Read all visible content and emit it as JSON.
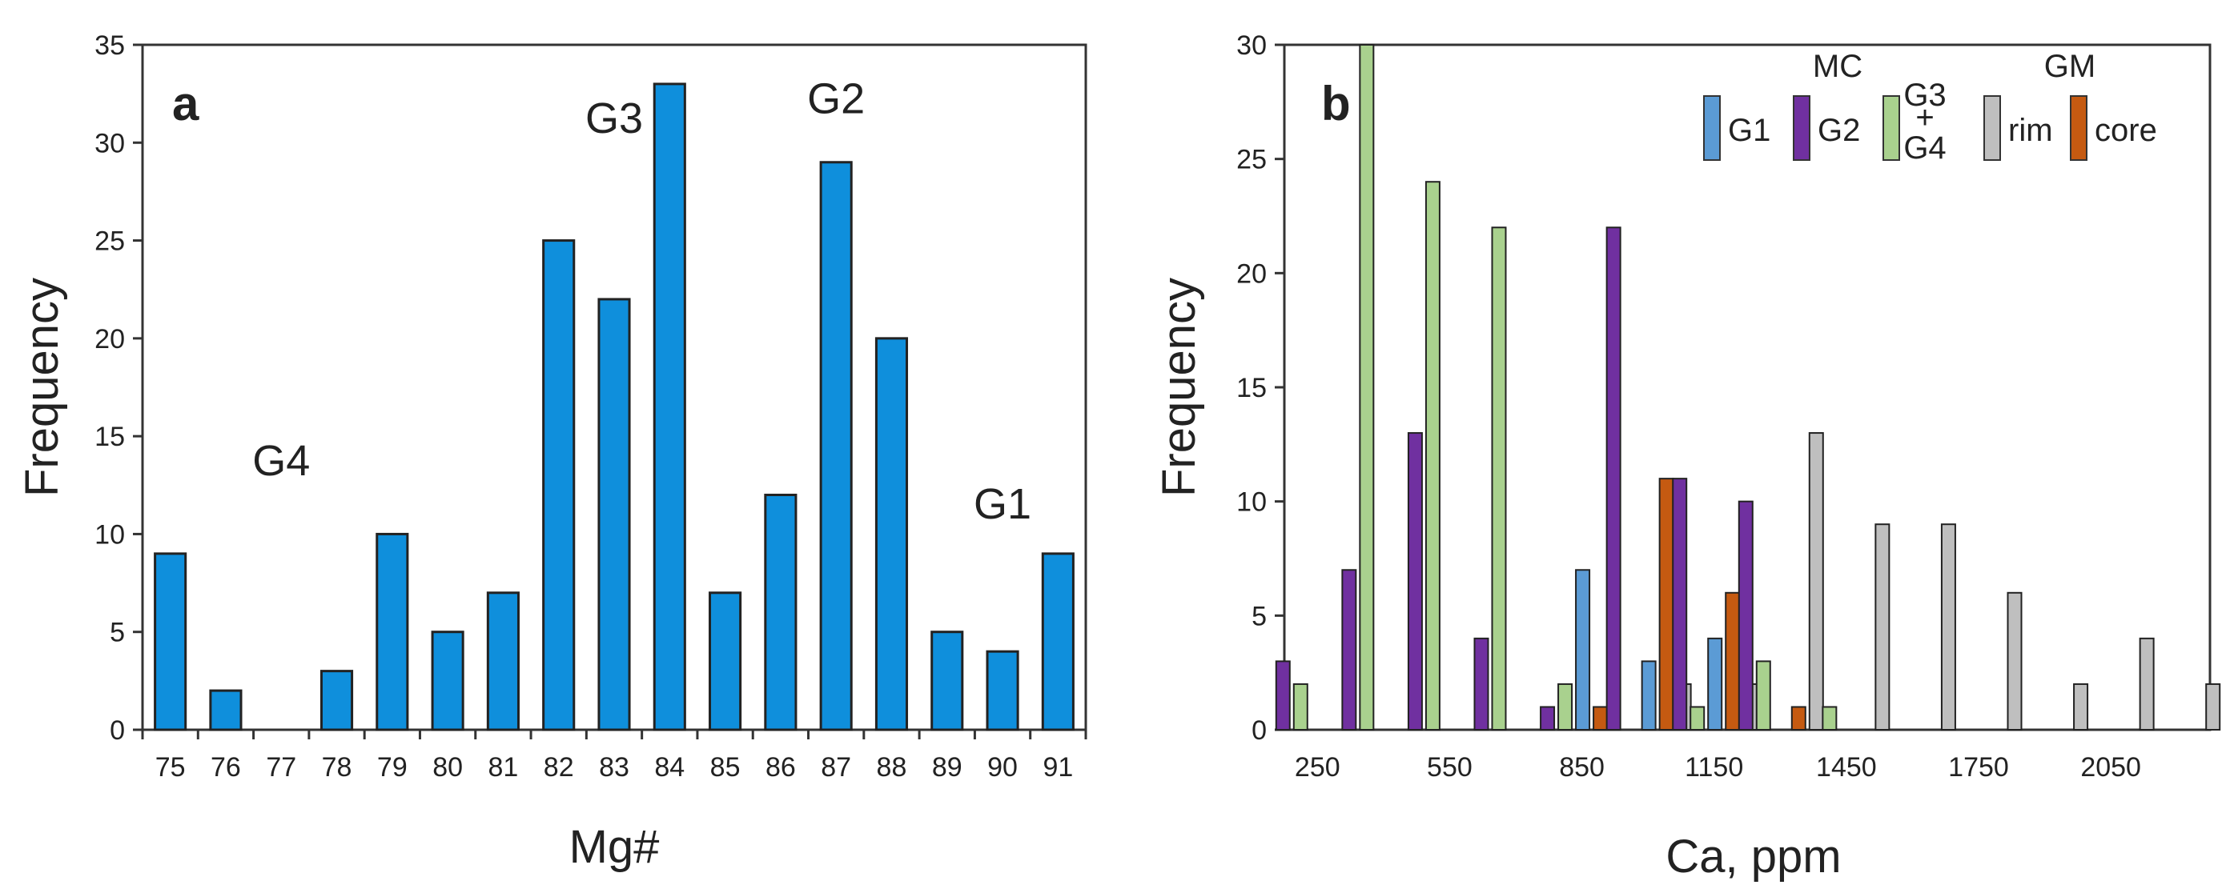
{
  "chart_data": [
    {
      "type": "bar",
      "panel_label": "a",
      "xlabel": "Mg#",
      "ylabel": "Frequency",
      "ylim": [
        0,
        35
      ],
      "yticks": [
        "0",
        "5",
        "10",
        "15",
        "20",
        "25",
        "30",
        "35"
      ],
      "categories": [
        "75",
        "76",
        "77",
        "78",
        "79",
        "80",
        "81",
        "82",
        "83",
        "84",
        "85",
        "86",
        "87",
        "88",
        "89",
        "90",
        "91"
      ],
      "values": [
        9,
        2,
        0,
        3,
        10,
        5,
        7,
        25,
        22,
        33,
        7,
        12,
        29,
        20,
        5,
        4,
        9
      ],
      "bar_color": "#0f8fdc",
      "annotations": [
        {
          "text": "G4",
          "category": "77",
          "y": 13
        },
        {
          "text": "G3",
          "category": "83",
          "y": 30.5
        },
        {
          "text": "G2",
          "category": "87",
          "y": 31.5
        },
        {
          "text": "G1",
          "category": "90",
          "y": 10.8
        }
      ]
    },
    {
      "type": "bar",
      "panel_label": "b",
      "xlabel": "Ca, ppm",
      "ylabel": "Frequency",
      "ylim": [
        0,
        30
      ],
      "yticks": [
        "0",
        "5",
        "10",
        "15",
        "20",
        "25",
        "30"
      ],
      "categories": [
        "250",
        "400",
        "550",
        "700",
        "850",
        "1000",
        "1150",
        "1300",
        "1450",
        "1600",
        "1750",
        "1900",
        "2050",
        "2200"
      ],
      "xtick_labels": [
        "250",
        "550",
        "850",
        "1150",
        "1450",
        "1750",
        "2050"
      ],
      "legend_groups": {
        "mc": "MC",
        "gm": "GM"
      },
      "series": [
        {
          "name": "G1",
          "group": "MC",
          "color": "#5b9bd5",
          "values": [
            0,
            0,
            0,
            0,
            7,
            3,
            4,
            0,
            0,
            0,
            0,
            0,
            0,
            0
          ]
        },
        {
          "name": "G2",
          "group": "MC",
          "color": "#7030a0",
          "values": [
            3,
            7,
            13,
            4,
            1,
            22,
            11,
            10,
            0,
            0,
            0,
            0,
            0,
            0
          ]
        },
        {
          "name": "G3 + G4",
          "legend_lines": [
            "G3",
            "+",
            "G4"
          ],
          "group": "MC",
          "color": "#a9d18e",
          "values": [
            2,
            30,
            24,
            22,
            2,
            0,
            1,
            3,
            1,
            0,
            0,
            0,
            0,
            0
          ]
        },
        {
          "name": "core",
          "group": "GM",
          "color": "#c55a11",
          "values": [
            0,
            0,
            0,
            0,
            1,
            11,
            6,
            1,
            0,
            0,
            0,
            0,
            0,
            0
          ]
        },
        {
          "name": "rim",
          "group": "GM",
          "color": "#bfbfbf",
          "values": [
            0,
            0,
            0,
            0,
            0,
            2,
            2,
            13,
            9,
            9,
            6,
            2,
            4,
            2
          ]
        }
      ]
    }
  ]
}
